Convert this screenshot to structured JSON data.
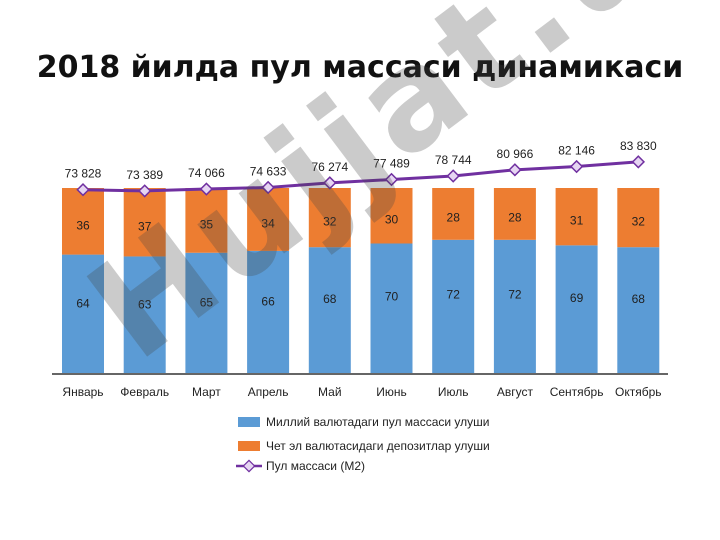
{
  "slide": {
    "title": "2018 йилда пул массаси динамикаси",
    "watermark": "Hujjat.uz"
  },
  "chart_data": {
    "type": "bar",
    "stacked": true,
    "stack_percent": true,
    "categories": [
      "Январь",
      "Февраль",
      "Март",
      "Апрель",
      "Май",
      "Июнь",
      "Июль",
      "Август",
      "Сентябрь",
      "Октябрь"
    ],
    "series": [
      {
        "name": "Миллий валютадаги пул массаси улуши",
        "type": "bar",
        "color": "#5b9bd5",
        "values": [
          64,
          63,
          65,
          66,
          68,
          70,
          72,
          72,
          69,
          68
        ]
      },
      {
        "name": "Чет эл валютасидаги депозитлар улуши",
        "type": "bar",
        "color": "#ed7d31",
        "values": [
          36,
          37,
          35,
          34,
          32,
          30,
          28,
          28,
          31,
          32
        ]
      },
      {
        "name": "Пул массаси (М2)",
        "type": "line",
        "color": "#7030a0",
        "values": [
          73828,
          73389,
          74066,
          74633,
          76274,
          77489,
          78744,
          80966,
          82146,
          83830
        ],
        "labels": [
          "73 828",
          "73 389",
          "74 066",
          "74 633",
          "76 274",
          "77 489",
          "78 744",
          "80 966",
          "82 146",
          "83 830"
        ]
      }
    ],
    "legend_position": "bottom-left",
    "grid": false
  }
}
